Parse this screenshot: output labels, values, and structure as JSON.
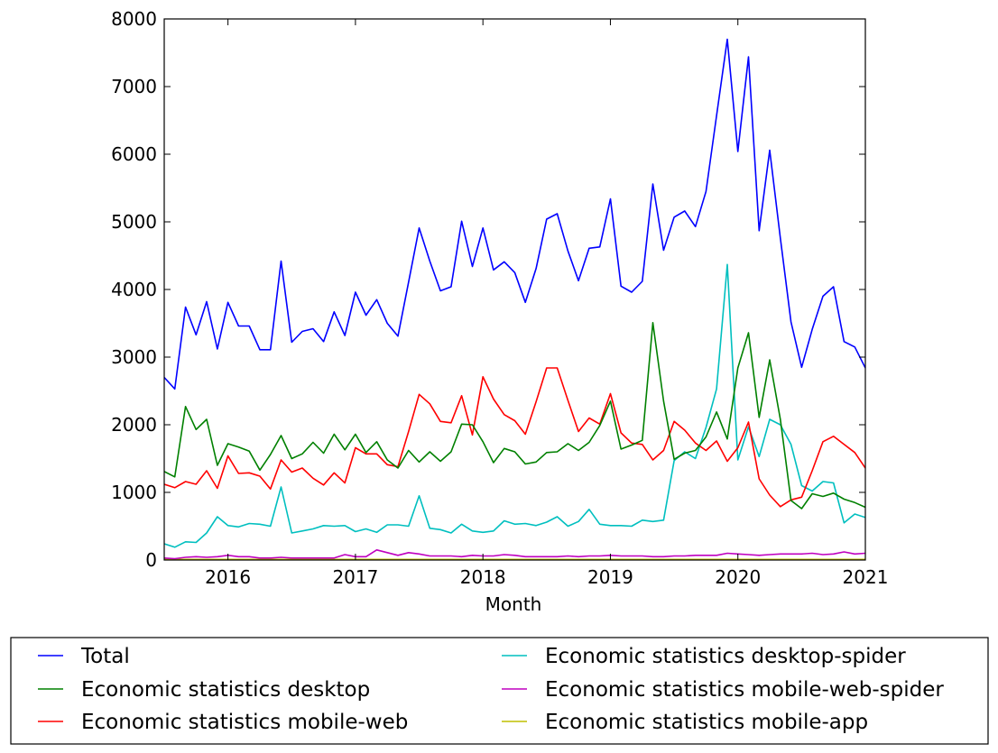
{
  "chart_data": {
    "type": "line",
    "title": "",
    "xlabel": "Month",
    "ylabel": "",
    "xlim": [
      2015.5,
      2021.0
    ],
    "ylim": [
      0,
      8000
    ],
    "grid": false,
    "legend_position": "bottom",
    "x_ticks": [
      2016,
      2017,
      2018,
      2019,
      2020,
      2021
    ],
    "x_tick_labels": [
      "2016",
      "2017",
      "2018",
      "2019",
      "2020",
      "2021"
    ],
    "y_ticks": [
      0,
      1000,
      2000,
      3000,
      4000,
      5000,
      6000,
      7000,
      8000
    ],
    "y_tick_labels": [
      "0",
      "1000",
      "2000",
      "3000",
      "4000",
      "5000",
      "6000",
      "7000",
      "8000"
    ],
    "x": [
      2015.5,
      2015.583,
      2015.667,
      2015.75,
      2015.833,
      2015.917,
      2016.0,
      2016.083,
      2016.167,
      2016.25,
      2016.333,
      2016.417,
      2016.5,
      2016.583,
      2016.667,
      2016.75,
      2016.833,
      2016.917,
      2017.0,
      2017.083,
      2017.167,
      2017.25,
      2017.333,
      2017.417,
      2017.5,
      2017.583,
      2017.667,
      2017.75,
      2017.833,
      2017.917,
      2018.0,
      2018.083,
      2018.167,
      2018.25,
      2018.333,
      2018.417,
      2018.5,
      2018.583,
      2018.667,
      2018.75,
      2018.833,
      2018.917,
      2019.0,
      2019.083,
      2019.167,
      2019.25,
      2019.333,
      2019.417,
      2019.5,
      2019.583,
      2019.667,
      2019.75,
      2019.833,
      2019.917,
      2020.0,
      2020.083,
      2020.167,
      2020.25,
      2020.333,
      2020.417,
      2020.5,
      2020.583,
      2020.667,
      2020.75,
      2020.833,
      2020.917,
      2021.0
    ],
    "series": [
      {
        "name": "Total",
        "color": "#0000ff",
        "values": [
          2700,
          2530,
          3740,
          3330,
          3820,
          3120,
          3810,
          3460,
          3460,
          3110,
          3110,
          4420,
          3220,
          3380,
          3420,
          3230,
          3670,
          3320,
          3960,
          3620,
          3850,
          3500,
          3310,
          4110,
          4910,
          4420,
          3980,
          4040,
          5010,
          4340,
          4910,
          4290,
          4410,
          4250,
          3810,
          4310,
          5040,
          5120,
          4570,
          4130,
          4610,
          4630,
          5340,
          4050,
          3960,
          4120,
          5560,
          4580,
          5070,
          5160,
          4930,
          5450,
          6570,
          7700,
          6040,
          7440,
          4870,
          6060,
          4760,
          3520,
          2850,
          3410,
          3900,
          4040,
          3230,
          3150,
          2840
        ]
      },
      {
        "name": "Economic statistics desktop",
        "color": "#008000",
        "values": [
          1310,
          1230,
          2270,
          1930,
          2080,
          1400,
          1720,
          1670,
          1610,
          1330,
          1560,
          1840,
          1500,
          1570,
          1740,
          1580,
          1860,
          1630,
          1860,
          1590,
          1750,
          1480,
          1360,
          1620,
          1450,
          1600,
          1460,
          1600,
          2010,
          2000,
          1750,
          1440,
          1650,
          1600,
          1420,
          1450,
          1590,
          1600,
          1720,
          1620,
          1740,
          1990,
          2350,
          1640,
          1700,
          1770,
          3510,
          2350,
          1490,
          1580,
          1620,
          1820,
          2190,
          1790,
          2840,
          3360,
          2110,
          2960,
          2080,
          880,
          760,
          980,
          940,
          990,
          900,
          850,
          780
        ]
      },
      {
        "name": "Economic statistics mobile-web",
        "color": "#ff0000",
        "values": [
          1120,
          1070,
          1160,
          1120,
          1320,
          1060,
          1540,
          1280,
          1290,
          1240,
          1050,
          1480,
          1300,
          1360,
          1210,
          1110,
          1290,
          1140,
          1660,
          1570,
          1570,
          1410,
          1380,
          1900,
          2450,
          2310,
          2050,
          2030,
          2430,
          1850,
          2710,
          2380,
          2150,
          2060,
          1860,
          2340,
          2840,
          2840,
          2360,
          1900,
          2100,
          2010,
          2460,
          1880,
          1730,
          1710,
          1480,
          1620,
          2050,
          1920,
          1730,
          1620,
          1760,
          1460,
          1660,
          2040,
          1200,
          960,
          790,
          890,
          930,
          1320,
          1750,
          1830,
          1710,
          1590,
          1360
        ]
      },
      {
        "name": "Economic statistics desktop-spider",
        "color": "#00bfbf",
        "values": [
          240,
          190,
          270,
          260,
          400,
          640,
          510,
          490,
          540,
          530,
          500,
          1080,
          400,
          430,
          460,
          510,
          500,
          510,
          420,
          460,
          410,
          520,
          520,
          500,
          950,
          470,
          450,
          400,
          530,
          430,
          410,
          430,
          580,
          530,
          540,
          510,
          560,
          640,
          500,
          570,
          750,
          530,
          510,
          510,
          500,
          590,
          570,
          590,
          1470,
          1600,
          1500,
          1960,
          2530,
          4370,
          1480,
          1970,
          1530,
          2080,
          2000,
          1710,
          1100,
          1020,
          1160,
          1140,
          550,
          680,
          630
        ]
      },
      {
        "name": "Economic statistics mobile-web-spider",
        "color": "#bf00bf",
        "values": [
          30,
          20,
          40,
          50,
          40,
          50,
          70,
          50,
          50,
          30,
          30,
          40,
          30,
          30,
          30,
          30,
          30,
          80,
          50,
          50,
          150,
          110,
          70,
          110,
          90,
          60,
          60,
          60,
          50,
          70,
          60,
          60,
          80,
          70,
          50,
          50,
          50,
          50,
          60,
          50,
          60,
          60,
          70,
          60,
          60,
          60,
          50,
          50,
          60,
          60,
          70,
          70,
          70,
          100,
          90,
          80,
          70,
          80,
          90,
          90,
          90,
          100,
          80,
          90,
          120,
          90,
          100
        ]
      },
      {
        "name": "Economic statistics mobile-app",
        "color": "#bfbf00",
        "values": [
          10,
          10,
          10,
          10,
          10,
          10,
          10,
          10,
          10,
          10,
          10,
          10,
          10,
          10,
          10,
          10,
          10,
          10,
          10,
          10,
          10,
          10,
          10,
          10,
          10,
          10,
          10,
          10,
          10,
          10,
          10,
          10,
          10,
          10,
          10,
          10,
          10,
          10,
          10,
          10,
          10,
          10,
          10,
          10,
          10,
          10,
          10,
          10,
          10,
          10,
          10,
          10,
          10,
          10,
          10,
          10,
          10,
          10,
          10,
          10,
          10,
          10,
          10,
          10,
          10,
          10,
          10
        ]
      }
    ],
    "legend_order": [
      0,
      3,
      1,
      4,
      2,
      5
    ]
  }
}
